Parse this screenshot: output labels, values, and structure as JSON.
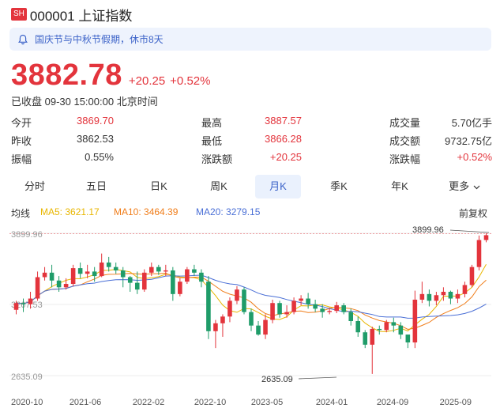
{
  "header": {
    "market": "SH",
    "title": "000001 上证指数"
  },
  "notice": {
    "text": "国庆节与中秋节假期，休市8天"
  },
  "quote": {
    "price": "3882.78",
    "change": "+20.25",
    "change_pct": "+0.52%",
    "status": "已收盘 09-30 15:00:00 北京时间"
  },
  "stats": [
    [
      {
        "label": "今开",
        "value": "3869.70",
        "color": "red"
      },
      {
        "label": "最高",
        "value": "3887.57",
        "color": "red"
      },
      {
        "label": "成交量",
        "value": "5.70亿手",
        "color": "dark"
      }
    ],
    [
      {
        "label": "昨收",
        "value": "3862.53",
        "color": "dark"
      },
      {
        "label": "最低",
        "value": "3866.28",
        "color": "red"
      },
      {
        "label": "成交额",
        "value": "9732.75亿",
        "color": "dark"
      }
    ],
    [
      {
        "label": "振幅",
        "value": "0.55%",
        "color": "dark"
      },
      {
        "label": "涨跌额",
        "value": "+20.25",
        "color": "red"
      },
      {
        "label": "涨跌幅",
        "value": "+0.52%",
        "color": "red"
      }
    ]
  ],
  "tabs": [
    "分时",
    "五日",
    "日K",
    "周K",
    "月K",
    "季K",
    "年K",
    "更多"
  ],
  "active_tab": 4,
  "ma": {
    "label": "均线",
    "ma5": "MA5: 3621.17",
    "ma10": "MA10: 3464.39",
    "ma20": "MA20: 3279.15",
    "fq": "前复权"
  },
  "colors": {
    "up": "#e3343c",
    "down": "#1f9c69",
    "ma5": "#e8b600",
    "ma10": "#f07d1a",
    "ma20": "#4a6fd6",
    "accent": "#3b62c8"
  },
  "chart_data": {
    "type": "candlestick",
    "y_axis_labels": [
      "3899.96",
      "3267.53",
      "2635.09"
    ],
    "high_marker": "3899.96",
    "low_marker": "2635.09",
    "x_labels": [
      "2020-10",
      "2021-06",
      "2022-02",
      "2022-10",
      "2023-05",
      "2024-01",
      "2024-09",
      "2025-09"
    ],
    "ylim": [
      2635.09,
      3899.96
    ],
    "candles": [
      [
        3220,
        3280,
        3180,
        3300
      ],
      [
        3280,
        3270,
        3200,
        3320
      ],
      [
        3270,
        3320,
        3230,
        3380
      ],
      [
        3320,
        3510,
        3300,
        3560
      ],
      [
        3510,
        3550,
        3480,
        3600
      ],
      [
        3550,
        3480,
        3420,
        3620
      ],
      [
        3480,
        3420,
        3380,
        3520
      ],
      [
        3420,
        3450,
        3400,
        3500
      ],
      [
        3450,
        3590,
        3430,
        3620
      ],
      [
        3590,
        3540,
        3500,
        3640
      ],
      [
        3540,
        3560,
        3500,
        3620
      ],
      [
        3560,
        3520,
        3470,
        3600
      ],
      [
        3520,
        3640,
        3510,
        3720
      ],
      [
        3640,
        3600,
        3560,
        3690
      ],
      [
        3600,
        3570,
        3540,
        3640
      ],
      [
        3570,
        3510,
        3420,
        3600
      ],
      [
        3510,
        3460,
        3380,
        3520
      ],
      [
        3460,
        3400,
        3360,
        3560
      ],
      [
        3400,
        3550,
        3380,
        3580
      ],
      [
        3550,
        3600,
        3520,
        3640
      ],
      [
        3600,
        3560,
        3530,
        3620
      ],
      [
        3560,
        3570,
        3520,
        3620
      ],
      [
        3570,
        3360,
        3300,
        3600
      ],
      [
        3360,
        3470,
        3340,
        3500
      ],
      [
        3470,
        3580,
        3450,
        3600
      ],
      [
        3580,
        3550,
        3520,
        3620
      ],
      [
        3550,
        3470,
        3420,
        3580
      ],
      [
        3470,
        3030,
        2960,
        3520
      ],
      [
        3030,
        3100,
        2880,
        3130
      ],
      [
        3100,
        3160,
        2980,
        3180
      ],
      [
        3160,
        3300,
        3110,
        3330
      ],
      [
        3300,
        3400,
        3270,
        3430
      ],
      [
        3400,
        3200,
        3180,
        3420
      ],
      [
        3200,
        3080,
        3030,
        3230
      ],
      [
        3080,
        3000,
        2990,
        3120
      ],
      [
        3000,
        3130,
        2960,
        3180
      ],
      [
        3130,
        3280,
        3100,
        3310
      ],
      [
        3280,
        3180,
        3150,
        3300
      ],
      [
        3180,
        3200,
        3150,
        3260
      ],
      [
        3200,
        3300,
        3180,
        3330
      ],
      [
        3300,
        3320,
        3260,
        3350
      ],
      [
        3320,
        3270,
        3230,
        3370
      ],
      [
        3270,
        3230,
        3200,
        3310
      ],
      [
        3230,
        3200,
        3150,
        3270
      ],
      [
        3200,
        3210,
        3180,
        3240
      ],
      [
        3210,
        3260,
        3190,
        3290
      ],
      [
        3260,
        3200,
        3180,
        3280
      ],
      [
        3200,
        3120,
        3080,
        3230
      ],
      [
        3120,
        3020,
        2980,
        3160
      ],
      [
        3020,
        2910,
        2880,
        3040
      ],
      [
        2910,
        3050,
        2650,
        3070
      ],
      [
        3050,
        3040,
        3000,
        3080
      ],
      [
        3040,
        3110,
        3020,
        3130
      ],
      [
        3110,
        3080,
        3020,
        3150
      ],
      [
        3080,
        3000,
        2960,
        3110
      ],
      [
        3000,
        2930,
        2880,
        2990
      ],
      [
        2930,
        3310,
        2880,
        3390
      ],
      [
        3310,
        3360,
        3280,
        3470
      ],
      [
        3360,
        3300,
        3250,
        3400
      ],
      [
        3300,
        3350,
        3260,
        3380
      ],
      [
        3350,
        3380,
        3300,
        3420
      ],
      [
        3380,
        3320,
        3270,
        3390
      ],
      [
        3320,
        3360,
        3280,
        3400
      ],
      [
        3360,
        3440,
        3330,
        3470
      ],
      [
        3440,
        3600,
        3420,
        3620
      ],
      [
        3600,
        3840,
        3570,
        3880
      ],
      [
        3840,
        3883,
        3820,
        3900
      ]
    ]
  }
}
